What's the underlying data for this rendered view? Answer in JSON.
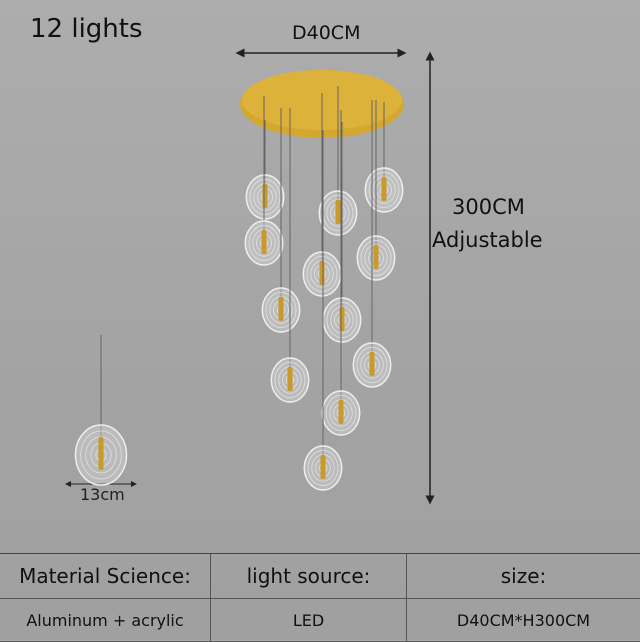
{
  "title": "12 lights",
  "dimensions": {
    "diameter": "D40CM",
    "height": "300CM",
    "height_note": "Adjustable",
    "single_diameter": "13cm"
  },
  "colors": {
    "canopy": "#d4a82e",
    "background": "#a8a8a8"
  },
  "table": {
    "headers": [
      "Material Science:",
      "light source:",
      "size:"
    ],
    "values": [
      "Aluminum + acrylic",
      "LED",
      "D40CM*H300CM"
    ]
  }
}
